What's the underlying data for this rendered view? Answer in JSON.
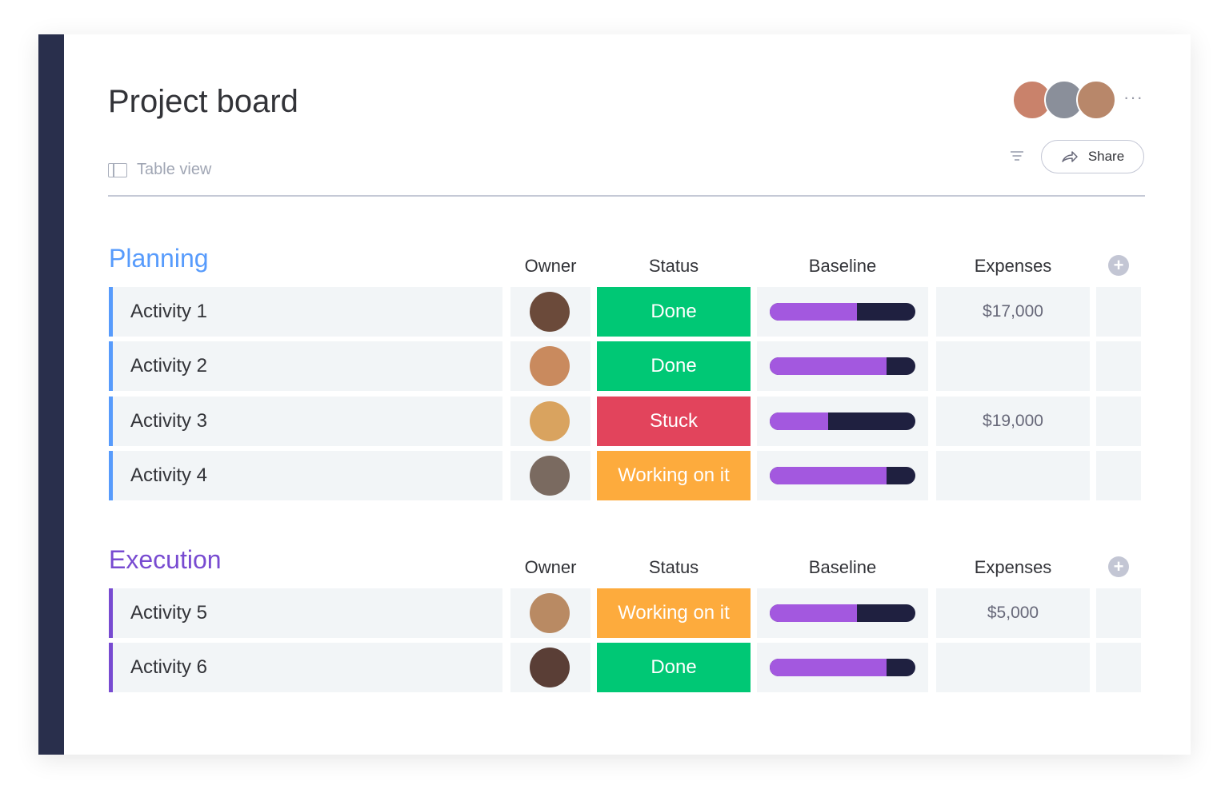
{
  "board": {
    "title": "Project board",
    "view_label": "Table view",
    "share_label": "Share",
    "more_label": "···"
  },
  "header_avatars": [
    {
      "name": "avatar-1",
      "color": "#c9826b"
    },
    {
      "name": "avatar-2",
      "color": "#8a8f9a"
    },
    {
      "name": "avatar-3",
      "color": "#b8876a"
    }
  ],
  "columns": {
    "owner": "Owner",
    "status": "Status",
    "baseline": "Baseline",
    "expenses": "Expenses"
  },
  "groups": [
    {
      "title": "Planning",
      "color": "#579bfc",
      "rows": [
        {
          "name": "Activity 1",
          "status": "Done",
          "status_color": "#00c875",
          "baseline_fraction": 0.6,
          "expenses": "$17,000",
          "owner_color": "#6b4a3a"
        },
        {
          "name": "Activity 2",
          "status": "Done",
          "status_color": "#00c875",
          "baseline_fraction": 0.8,
          "expenses": "",
          "owner_color": "#c98a5e"
        },
        {
          "name": "Activity 3",
          "status": "Stuck",
          "status_color": "#e2445c",
          "baseline_fraction": 0.4,
          "expenses": "$19,000",
          "owner_color": "#d9a35f"
        },
        {
          "name": "Activity 4",
          "status": "Working on it",
          "status_color": "#fdab3d",
          "baseline_fraction": 0.8,
          "expenses": "",
          "owner_color": "#7a6a60"
        }
      ]
    },
    {
      "title": "Execution",
      "color": "#784bd1",
      "rows": [
        {
          "name": "Activity 5",
          "status": "Working on it",
          "status_color": "#fdab3d",
          "baseline_fraction": 0.6,
          "expenses": "$5,000",
          "owner_color": "#b98a63"
        },
        {
          "name": "Activity 6",
          "status": "Done",
          "status_color": "#00c875",
          "baseline_fraction": 0.8,
          "expenses": "",
          "owner_color": "#5a3e36"
        }
      ]
    }
  ]
}
